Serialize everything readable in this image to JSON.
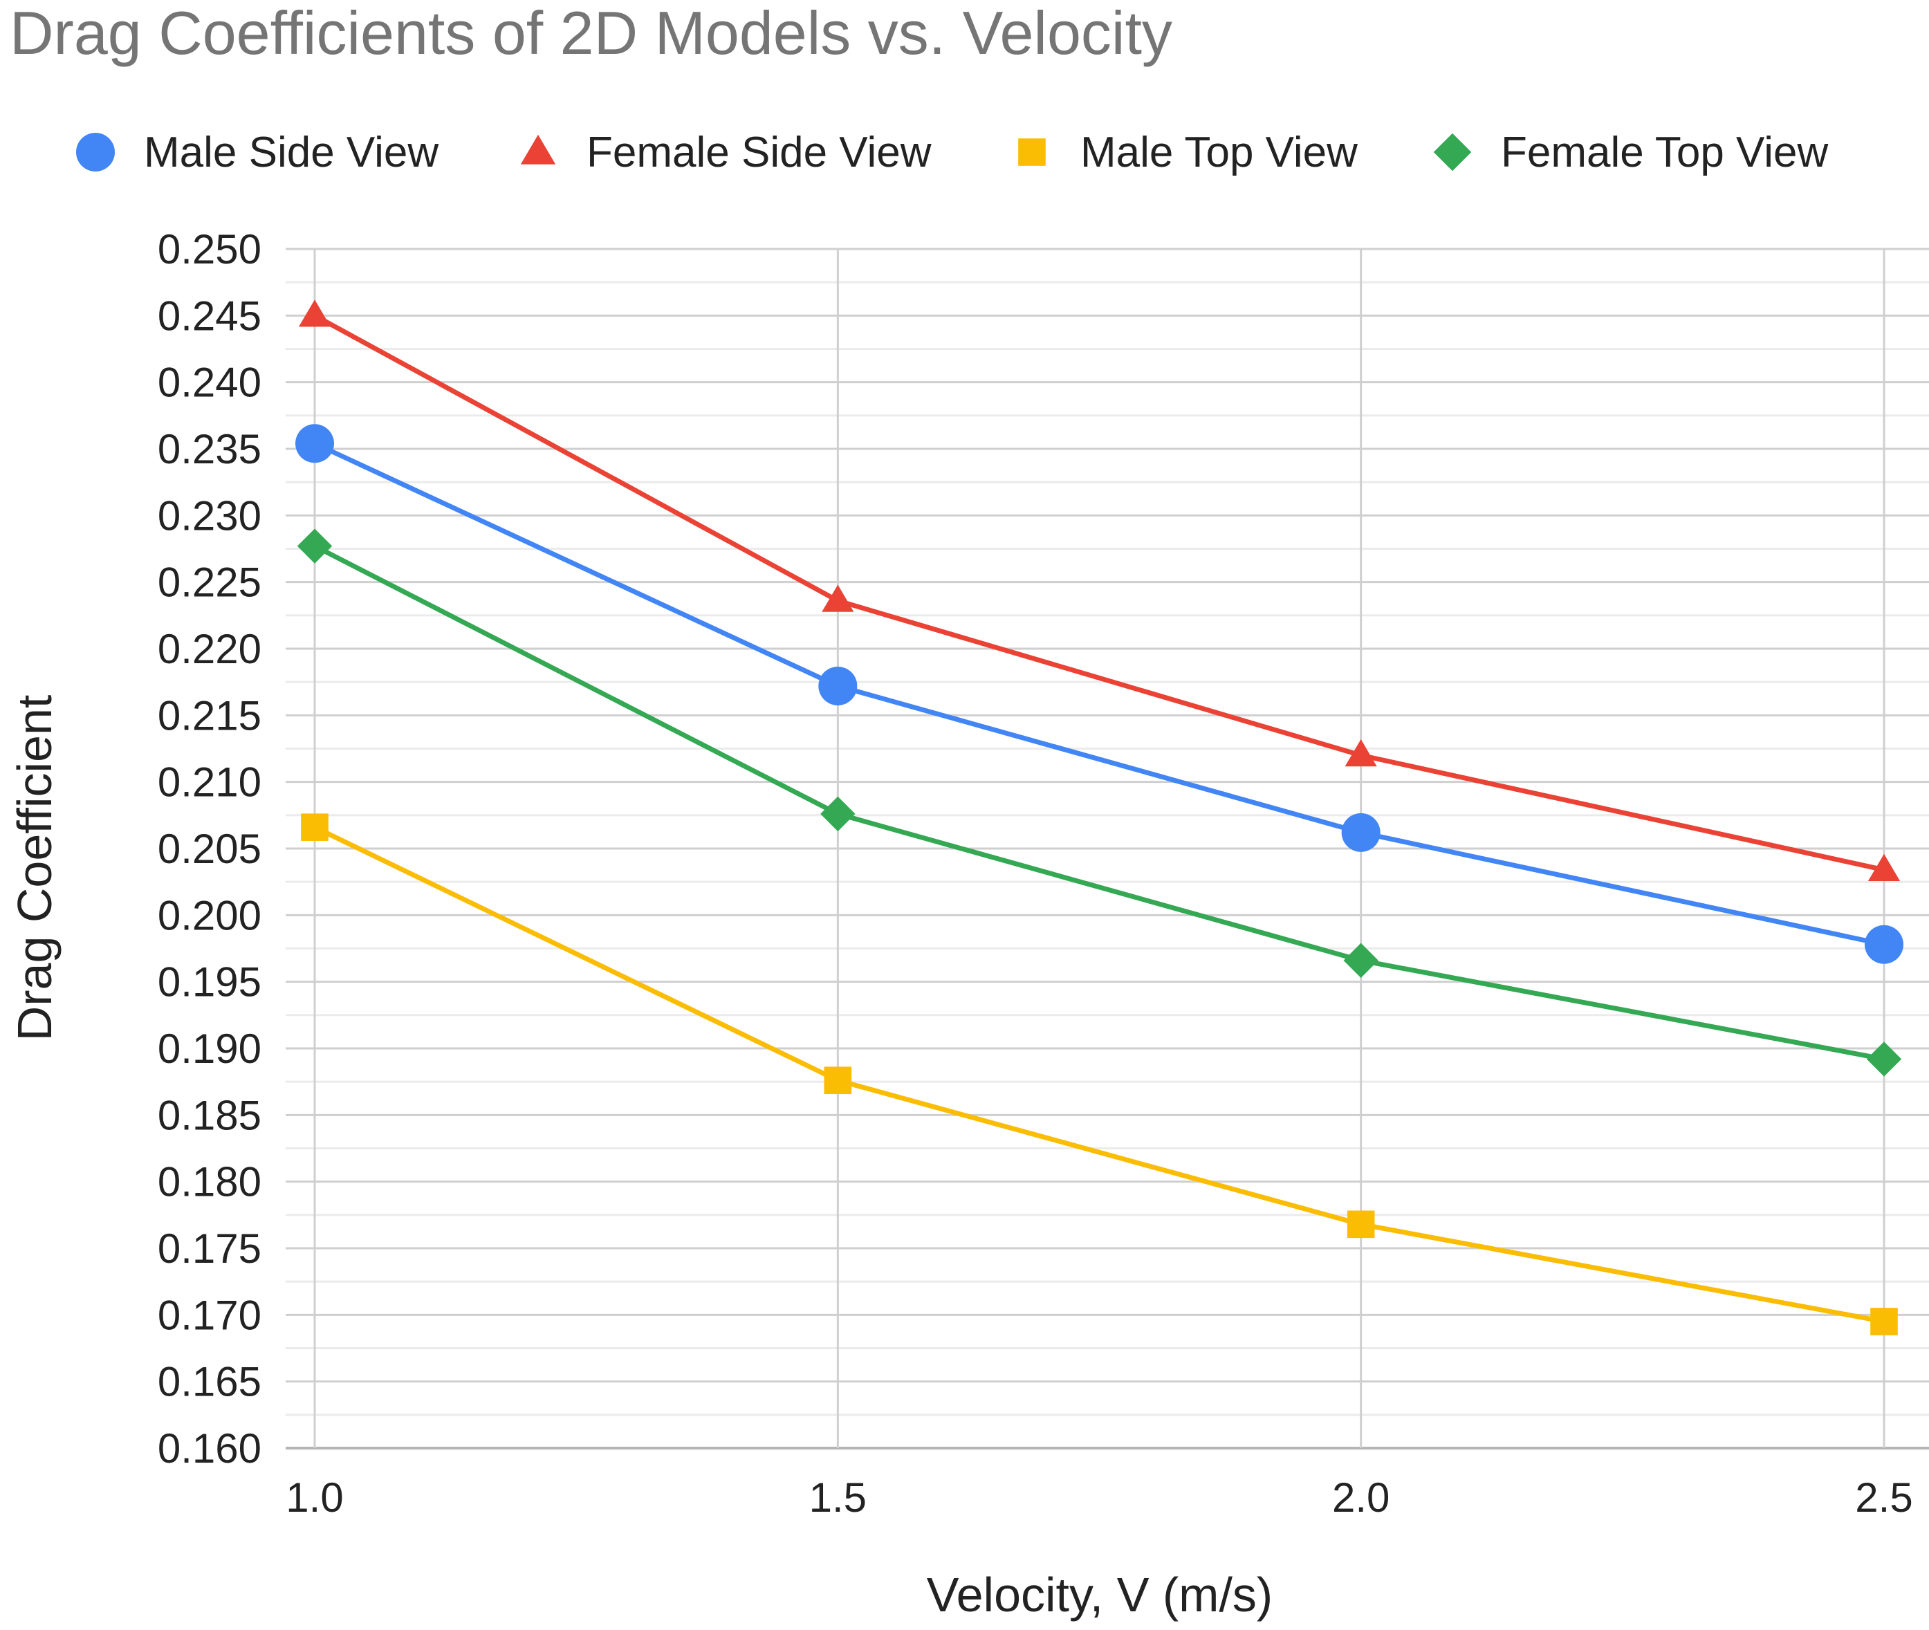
{
  "chart_data": {
    "type": "line",
    "title": "Drag Coefficients of 2D Models vs. Velocity",
    "xlabel": "Velocity, V (m/s)",
    "ylabel": "Drag Coefficient",
    "x": [
      1.0,
      1.5,
      2.0,
      2.5
    ],
    "x_tick_labels": [
      "1.0",
      "1.5",
      "2.0",
      "2.5"
    ],
    "xlim": [
      1.0,
      2.5
    ],
    "ylim": [
      0.16,
      0.25
    ],
    "y_ticks": [
      0.16,
      0.165,
      0.17,
      0.175,
      0.18,
      0.185,
      0.19,
      0.195,
      0.2,
      0.205,
      0.21,
      0.215,
      0.22,
      0.225,
      0.23,
      0.235,
      0.24,
      0.245,
      0.25
    ],
    "y_tick_labels": [
      "0.160",
      "0.165",
      "0.170",
      "0.175",
      "0.180",
      "0.185",
      "0.190",
      "0.195",
      "0.200",
      "0.205",
      "0.210",
      "0.215",
      "0.220",
      "0.225",
      "0.230",
      "0.235",
      "0.240",
      "0.245",
      "0.250"
    ],
    "grid": true,
    "legend_position": "top",
    "series": [
      {
        "name": "Male Side View",
        "color": "#4285F4",
        "marker": "circle",
        "values": [
          0.2354,
          0.2172,
          0.2062,
          0.1978
        ]
      },
      {
        "name": "Female Side View",
        "color": "#EA4335",
        "marker": "triangle",
        "values": [
          0.245,
          0.2236,
          0.212,
          0.2034
        ]
      },
      {
        "name": "Male Top View",
        "color": "#FBBC04",
        "marker": "square",
        "values": [
          0.2066,
          0.1876,
          0.1768,
          0.1695
        ]
      },
      {
        "name": "Female Top View",
        "color": "#34A853",
        "marker": "diamond",
        "values": [
          0.2277,
          0.2076,
          0.1966,
          0.1892
        ]
      }
    ]
  }
}
